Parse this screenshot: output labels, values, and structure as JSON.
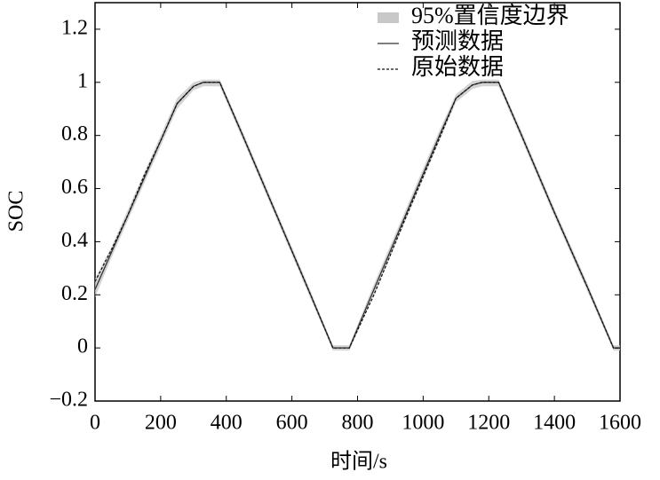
{
  "chart_data": {
    "type": "line",
    "xlabel": "时间/s",
    "ylabel": "SOC",
    "x": [
      0,
      50,
      100,
      150,
      200,
      250,
      300,
      330,
      380,
      450,
      550,
      650,
      725,
      775,
      850,
      950,
      1050,
      1100,
      1150,
      1180,
      1230,
      1300,
      1400,
      1500,
      1580,
      1600
    ],
    "band": {
      "name": "95%置信度边界",
      "color": "#c8c8c8",
      "lower": [
        0.19,
        0.34,
        0.48,
        0.62,
        0.76,
        0.9,
        0.97,
        0.985,
        0.985,
        0.785,
        0.495,
        0.205,
        -0.01,
        -0.01,
        0.2,
        0.49,
        0.78,
        0.925,
        0.975,
        0.985,
        0.985,
        0.785,
        0.495,
        0.215,
        -0.01,
        -0.01
      ],
      "upper": [
        0.26,
        0.38,
        0.52,
        0.66,
        0.8,
        0.94,
        1.0,
        1.01,
        1.01,
        0.815,
        0.525,
        0.235,
        0.01,
        0.01,
        0.24,
        0.53,
        0.82,
        0.955,
        1.005,
        1.01,
        1.01,
        0.815,
        0.525,
        0.245,
        0.01,
        0.01
      ]
    },
    "series": [
      {
        "name": "预测数据",
        "color": "#333333",
        "values": [
          0.22,
          0.36,
          0.5,
          0.64,
          0.78,
          0.92,
          0.985,
          1,
          1,
          0.8,
          0.51,
          0.22,
          0,
          0,
          0.22,
          0.51,
          0.8,
          0.94,
          0.99,
          1,
          1,
          0.8,
          0.51,
          0.23,
          0,
          0
        ]
      },
      {
        "name": "原始数据",
        "color": "#111111",
        "dashed": true,
        "values": [
          0.25,
          0.37,
          0.5,
          0.65,
          0.78,
          0.92,
          0.985,
          1,
          1,
          0.8,
          0.51,
          0.22,
          0,
          0,
          0.2,
          0.5,
          0.79,
          0.94,
          0.99,
          1,
          1,
          0.8,
          0.51,
          0.23,
          0,
          0
        ]
      }
    ],
    "xlim": [
      0,
      1600
    ],
    "xticks": [
      0,
      200,
      400,
      600,
      800,
      1000,
      1200,
      1400,
      1600
    ],
    "ylim": [
      -0.2,
      1.3
    ],
    "yticks": [
      {
        "value": -0.2,
        "label": "−0.2"
      },
      0,
      0.2,
      0.4,
      0.6,
      0.8,
      1,
      1.2
    ],
    "legend": "upper right"
  }
}
